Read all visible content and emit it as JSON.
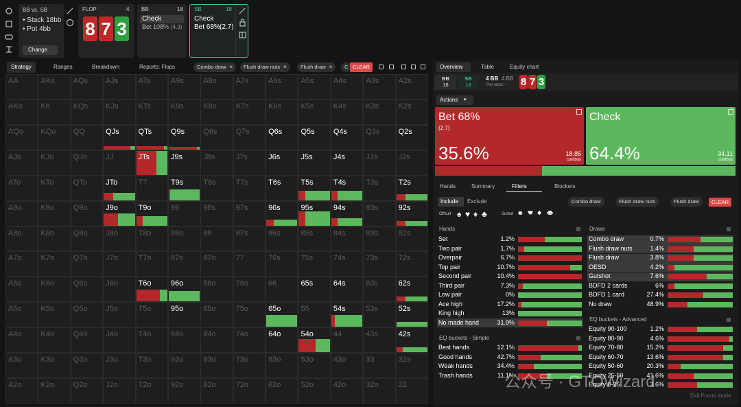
{
  "colors": {
    "bet": "#b3292b",
    "check": "#5cb85c",
    "accent": "#3cc4a0",
    "clear": "#e04848"
  },
  "spot": {
    "title": "BB vs. SB",
    "stack": "• Stack 18bb",
    "pot": "• Pot 4bb",
    "change": "Change"
  },
  "flop": {
    "label": "FLOP",
    "count": "4",
    "cards": [
      {
        "rank": "8",
        "color": "#c0282a"
      },
      {
        "rank": "7",
        "color": "#c0282a"
      },
      {
        "rank": "3",
        "color": "#2f9e3f"
      }
    ]
  },
  "bb_node": {
    "player": "BB",
    "stack": "18",
    "actions": [
      {
        "name": "Check"
      },
      {
        "name": "Bet 108%",
        "size": "(4.3)"
      }
    ]
  },
  "sb_node": {
    "player": "SB",
    "stack": "18",
    "actions": [
      {
        "name": "Check"
      },
      {
        "name": "Bet 68%",
        "size": "(2.7)"
      }
    ]
  },
  "tabs": [
    "Strategy",
    "Ranges",
    "Breakdown",
    "Reports: Flops"
  ],
  "filters": [
    "Combo draw",
    "Flush draw nuts",
    "Flush draw",
    "C"
  ],
  "clear": "CLEAR",
  "grid": {
    "rows": [
      [
        "AA",
        "AKs",
        "AQs",
        "AJs",
        "ATs",
        "A9s",
        "A8s",
        "A7s",
        "A6s",
        "A5s",
        "A4s",
        "A3s",
        "A2s"
      ],
      [
        "AKo",
        "KK",
        "KQs",
        "KJs",
        "KTs",
        "K9s",
        "K8s",
        "K7s",
        "K6s",
        "K5s",
        "K4s",
        "K3s",
        "K2s"
      ],
      [
        "AQo",
        "KQo",
        "QQ",
        {
          "hand": "QJs",
          "bet": 85,
          "check": 15,
          "weight": 0.15
        },
        {
          "hand": "QTs",
          "bet": 90,
          "check": 10,
          "weight": 0.15
        },
        {
          "hand": "Q9s",
          "bet": 90,
          "check": 10,
          "weight": 0.1
        },
        "Q8s",
        "Q7s",
        {
          "hand": "Q6s"
        },
        {
          "hand": "Q5s"
        },
        {
          "hand": "Q4s"
        },
        "Q3s",
        {
          "hand": "Q2s"
        }
      ],
      [
        "AJo",
        "KJo",
        "QJo",
        "JJ",
        {
          "hand": "JTs",
          "bet": 65,
          "check": 35,
          "weight": 1
        },
        {
          "hand": "J9s"
        },
        "J8s",
        "J7s",
        {
          "hand": "J6s"
        },
        {
          "hand": "J5s"
        },
        {
          "hand": "J4s"
        },
        "J3s",
        "J2s"
      ],
      [
        "ATo",
        "KTo",
        "QTo",
        {
          "hand": "JTo",
          "bet": 30,
          "check": 70,
          "weight": 0.3
        },
        "TT",
        {
          "hand": "T9s",
          "bet": 5,
          "check": 95,
          "weight": 0.45
        },
        "T8s",
        "T7s",
        {
          "hand": "T6s"
        },
        {
          "hand": "T5s",
          "bet": 20,
          "check": 80,
          "weight": 0.4
        },
        {
          "hand": "T4s",
          "bet": 20,
          "check": 80,
          "weight": 0.4
        },
        "T3s",
        {
          "hand": "T2s",
          "bet": 30,
          "check": 70,
          "weight": 0.25
        }
      ],
      [
        "A9o",
        "K9o",
        "Q9o",
        {
          "hand": "J9o",
          "bet": 45,
          "check": 55,
          "weight": 0.5
        },
        {
          "hand": "T9o",
          "bet": 20,
          "check": 80,
          "weight": 0.4
        },
        "99",
        "98s",
        "97s",
        {
          "hand": "96s",
          "bet": 25,
          "check": 75,
          "weight": 0.25
        },
        {
          "hand": "95s",
          "bet": 20,
          "check": 80,
          "weight": 0.6
        },
        {
          "hand": "94s",
          "bet": 20,
          "check": 80,
          "weight": 0.3
        },
        "93s",
        {
          "hand": "92s",
          "bet": 30,
          "check": 70,
          "weight": 0.2
        }
      ],
      [
        "A8o",
        "K8o",
        "Q8o",
        "J8o",
        "T8o",
        "98o",
        "88",
        "87s",
        "86s",
        "85s",
        "84s",
        "83s",
        "82s"
      ],
      [
        "A7o",
        "K7o",
        "Q7o",
        "J7o",
        "T7o",
        "97o",
        "87o",
        "77",
        "76s",
        "75s",
        "74s",
        "73s",
        "72s"
      ],
      [
        "A6o",
        "K6o",
        "Q6o",
        "J6o",
        {
          "hand": "T6o",
          "bet": 75,
          "check": 25,
          "weight": 0.5
        },
        {
          "hand": "96o",
          "bet": 0,
          "check": 100,
          "weight": 0.45
        },
        "86o",
        "76o",
        "66",
        {
          "hand": "65s"
        },
        {
          "hand": "64s"
        },
        "63s",
        {
          "hand": "62s",
          "bet": 30,
          "check": 70,
          "weight": 0.2
        }
      ],
      [
        "A5o",
        "K5o",
        "Q5o",
        "J5o",
        "T5o",
        {
          "hand": "95o"
        },
        "85o",
        "75o",
        {
          "hand": "65o",
          "bet": 0,
          "check": 100,
          "weight": 0.5
        },
        "55",
        {
          "hand": "54s",
          "bet": 12,
          "check": 88,
          "weight": 0.5
        },
        "53s",
        {
          "hand": "52s",
          "bet": 0,
          "check": 100,
          "weight": 0.2
        }
      ],
      [
        "A4o",
        "K4o",
        "Q4o",
        "J4o",
        "T4o",
        "94o",
        "84o",
        "74o",
        {
          "hand": "64o"
        },
        {
          "hand": "54o",
          "bet": 55,
          "check": 45,
          "weight": 0.55
        },
        "44",
        "43s",
        {
          "hand": "42s",
          "bet": 20,
          "check": 80,
          "weight": 0.2
        }
      ],
      [
        "A3o",
        "K3o",
        "Q3o",
        "J3o",
        "T3o",
        "93o",
        "83o",
        "73o",
        "63o",
        "53o",
        "43o",
        "33",
        "32s"
      ],
      [
        "A2o",
        "K2o",
        "Q2o",
        "J2o",
        "T2o",
        "92o",
        "82o",
        "72o",
        "62o",
        "52o",
        "42o",
        "32o",
        "22"
      ]
    ]
  },
  "right_tabs": [
    "Overview",
    "Table",
    "Equity chart"
  ],
  "summary": {
    "bb": {
      "player": "BB",
      "stack": "18"
    },
    "sb": {
      "player": "SB",
      "stack": "18"
    },
    "pot": "4 BB",
    "pot2": "4 BB",
    "pot_odds": "Pot odds: -"
  },
  "actions_label": "Actions",
  "actions": [
    {
      "name": "Bet 68%",
      "size": "(2.7)",
      "frequency": 35.6,
      "frequency_label": "35.6%",
      "combos": "18.85",
      "combos_label": "combos",
      "color": "#b3292b"
    },
    {
      "name": "Check",
      "frequency": 64.4,
      "frequency_label": "64.4%",
      "combos": "34.11",
      "combos_label": "combos",
      "color": "#5cb85c"
    }
  ],
  "sub_tabs": [
    "Hands",
    "Summary",
    "Filters",
    "Blockers"
  ],
  "include": "Include",
  "exclude": "Exclude",
  "right_filters": [
    "Combo draw",
    "Flush draw nuts",
    "Flush draw"
  ],
  "offsuit": {
    "label": "Offsuit",
    "suits": [
      "♠",
      "♥",
      "♦",
      "♣"
    ]
  },
  "suited": {
    "label": "Suited",
    "suits": [
      "♠♠",
      "♥♥",
      "♦♦",
      "♣♣"
    ]
  },
  "hands": {
    "title": "Hands",
    "rows": [
      {
        "label": "Set",
        "value": "1.2%",
        "bet": 42
      },
      {
        "label": "Two pair",
        "value": "1.7%",
        "bet": 10
      },
      {
        "label": "Overpair",
        "value": "6.7%",
        "bet": 100
      },
      {
        "label": "Top pair",
        "value": "10.7%",
        "bet": 82
      },
      {
        "label": "Second pair",
        "value": "10.4%",
        "bet": 100
      },
      {
        "label": "Third pair",
        "value": "7.3%",
        "bet": 8
      },
      {
        "label": "Low pair",
        "value": "0%",
        "bet": 0
      },
      {
        "label": "Ace high",
        "value": "17.2%",
        "bet": 5
      },
      {
        "label": "King high",
        "value": "13%",
        "bet": 0
      },
      {
        "label": "No made hand",
        "value": "31.9%",
        "bet": 45,
        "highlight": true
      }
    ]
  },
  "draws": {
    "title": "Draws",
    "rows": [
      {
        "label": "Combo draw",
        "value": "0.7%",
        "bet": 50,
        "highlight": true
      },
      {
        "label": "Flush draw nuts",
        "value": "1.4%",
        "bet": 40,
        "highlight": true
      },
      {
        "label": "Flush draw",
        "value": "3.8%",
        "bet": 40,
        "highlight": true
      },
      {
        "label": "OESD",
        "value": "4.2%",
        "bet": 10,
        "highlight": true
      },
      {
        "label": "Gutshot",
        "value": "7.6%",
        "bet": 60,
        "highlight": true
      },
      {
        "label": "BDFD 2 cards",
        "value": "6%",
        "bet": 10
      },
      {
        "label": "BDFD 1 card",
        "value": "27.4%",
        "bet": 55
      },
      {
        "label": "No draw",
        "value": "48.9%",
        "bet": 30
      }
    ]
  },
  "eq_simple": {
    "title": "EQ buckets - Simple",
    "rows": [
      {
        "label": "Best hands",
        "value": "12.1%",
        "bet": 95
      },
      {
        "label": "Good hands",
        "value": "42.7%",
        "bet": 35
      },
      {
        "label": "Weak hands",
        "value": "34.4%",
        "bet": 25
      },
      {
        "label": "Trash hands",
        "value": "11.1%",
        "bet": 45
      }
    ]
  },
  "eq_advanced": {
    "title": "EQ buckets - Advanced",
    "rows": [
      {
        "label": "Equity 90-100",
        "value": "1.2%",
        "bet": 45
      },
      {
        "label": "Equity 80-90",
        "value": "4.6%",
        "bet": 95
      },
      {
        "label": "Equity 70-80",
        "value": "15.2%",
        "bet": 85
      },
      {
        "label": "Equity 60-70",
        "value": "13.6%",
        "bet": 85
      },
      {
        "label": "Equity 50-60",
        "value": "20.3%",
        "bet": 20
      },
      {
        "label": "Equity 25-50",
        "value": "41.6%",
        "bet": 40
      },
      {
        "label": "Equity 0-25",
        "value": "3.6%",
        "bet": 45
      }
    ]
  },
  "exit_focus": "Exit Focus mode",
  "watermark": "公众号 · GTOWizard"
}
